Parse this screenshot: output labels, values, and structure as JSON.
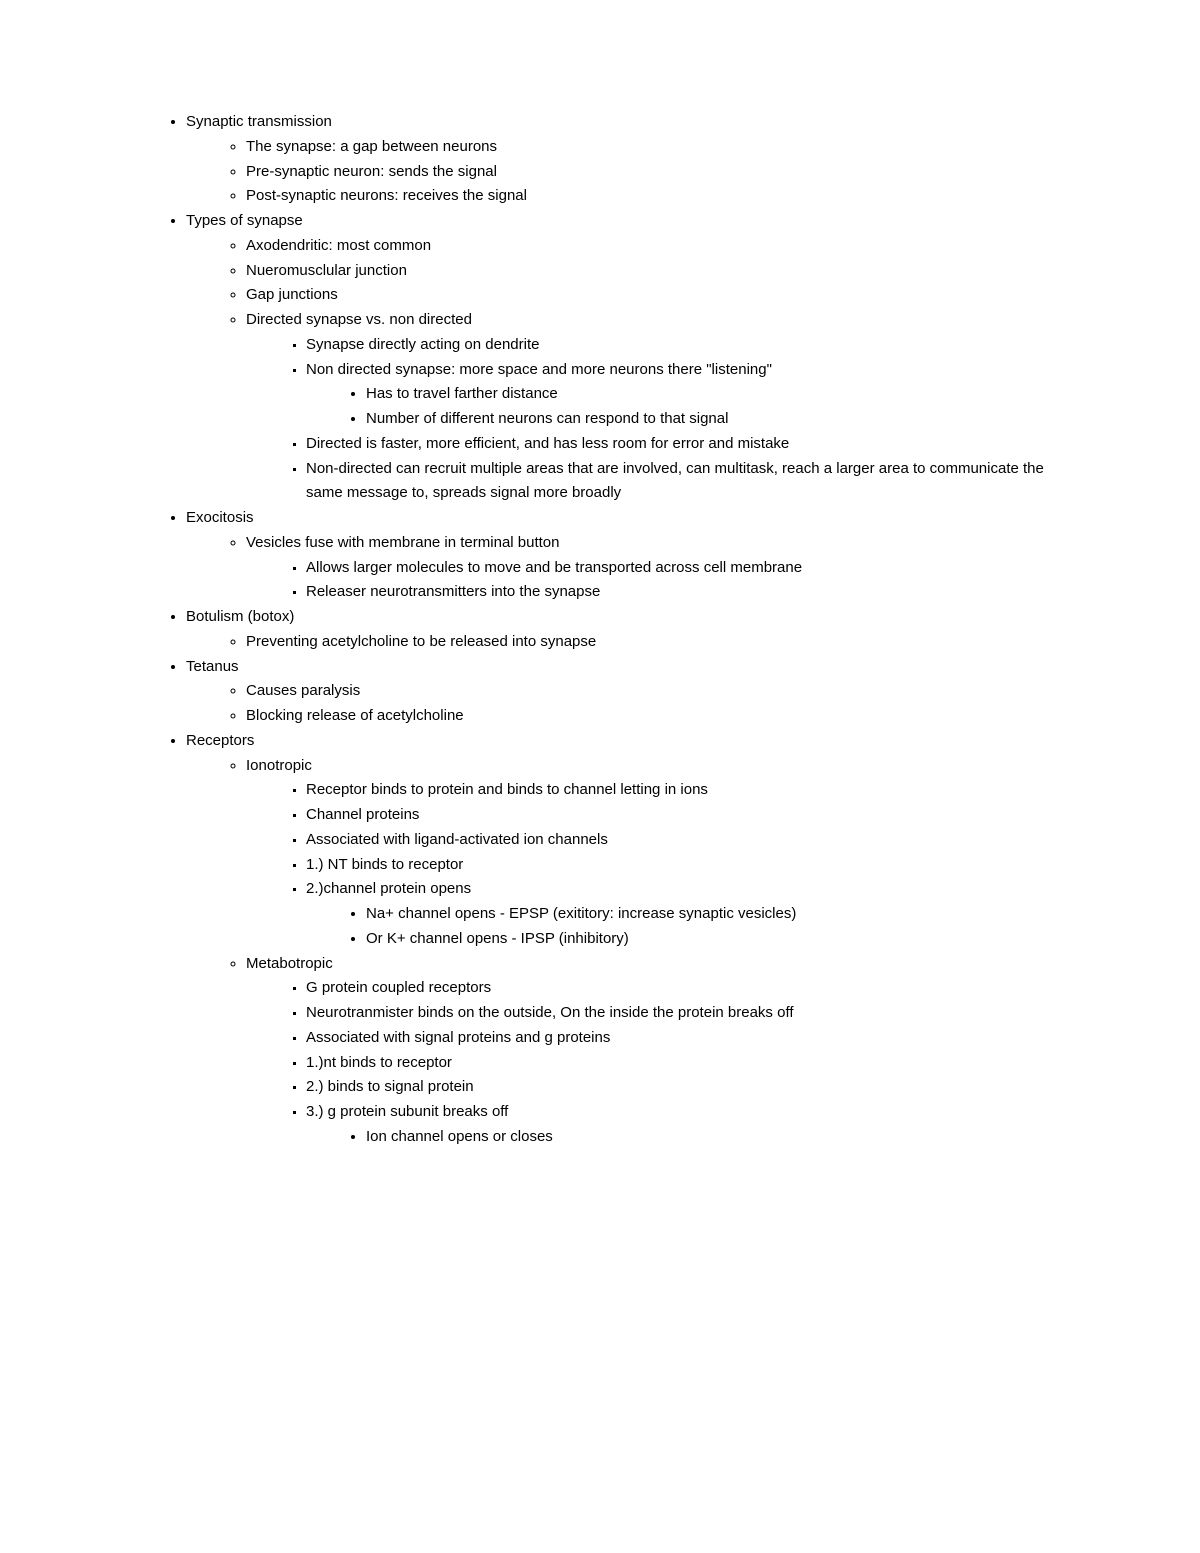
{
  "typography": {
    "font_family": "Arial",
    "font_size_pt": 11,
    "line_height": 1.65,
    "text_color": "#000000",
    "background_color": "#ffffff"
  },
  "outline": [
    {
      "level": 1,
      "text": "Synaptic transmission"
    },
    {
      "level": 2,
      "text": "The synapse: a gap between neurons"
    },
    {
      "level": 2,
      "text": "Pre-synaptic neuron: sends the signal"
    },
    {
      "level": 2,
      "text": "Post-synaptic neurons: receives the signal"
    },
    {
      "level": 1,
      "text": "Types of synapse"
    },
    {
      "level": 2,
      "text": "Axodendritic: most common"
    },
    {
      "level": 2,
      "text": "Nueromusclular junction"
    },
    {
      "level": 2,
      "text": "Gap junctions"
    },
    {
      "level": 2,
      "text": "Directed synapse vs. non directed"
    },
    {
      "level": 3,
      "text": "Synapse directly acting on dendrite"
    },
    {
      "level": 3,
      "text": "Non directed synapse: more space and more neurons there \"listening\""
    },
    {
      "level": 4,
      "text": "Has to travel farther distance"
    },
    {
      "level": 4,
      "text": "Number of different neurons can respond to that signal"
    },
    {
      "level": 3,
      "text": "Directed is faster, more efficient, and has less room for error and mistake"
    },
    {
      "level": 3,
      "text": "Non-directed can recruit multiple areas that are involved, can multitask, reach a larger area to communicate the same message to, spreads signal more broadly"
    },
    {
      "level": 1,
      "text": "Exocitosis"
    },
    {
      "level": 2,
      "text": "Vesicles fuse with membrane in terminal button"
    },
    {
      "level": 3,
      "text": "Allows larger molecules to move and be transported across cell membrane"
    },
    {
      "level": 3,
      "text": "Releaser neurotransmitters into the synapse"
    },
    {
      "level": 1,
      "text": "Botulism (botox)"
    },
    {
      "level": 2,
      "text": "Preventing acetylcholine to be released into synapse"
    },
    {
      "level": 1,
      "text": "Tetanus"
    },
    {
      "level": 2,
      "text": "Causes paralysis"
    },
    {
      "level": 2,
      "text": "Blocking release of acetylcholine"
    },
    {
      "level": 1,
      "text": "Receptors"
    },
    {
      "level": 2,
      "text": "Ionotropic"
    },
    {
      "level": 3,
      "text": "Receptor binds to protein and binds to channel letting in ions"
    },
    {
      "level": 3,
      "text": "Channel proteins"
    },
    {
      "level": 3,
      "text": "Associated with ligand-activated ion channels"
    },
    {
      "level": 3,
      "text": "1.) NT binds to receptor"
    },
    {
      "level": 3,
      "text": "2.)channel protein opens"
    },
    {
      "level": 4,
      "text": "Na+ channel opens - EPSP (exititory: increase synaptic vesicles)"
    },
    {
      "level": 4,
      "text": "Or K+ channel opens - IPSP (inhibitory)"
    },
    {
      "level": 2,
      "text": "Metabotropic"
    },
    {
      "level": 3,
      "text": "G protein coupled receptors"
    },
    {
      "level": 3,
      "text": "Neurotranmister binds on the outside, On the inside the protein breaks off"
    },
    {
      "level": 3,
      "text": "Associated with signal proteins and g proteins"
    },
    {
      "level": 3,
      "text": "1.)nt binds to receptor"
    },
    {
      "level": 3,
      "text": "2.) binds to signal protein"
    },
    {
      "level": 3,
      "text": "3.) g protein subunit breaks off"
    },
    {
      "level": 4,
      "text": "Ion channel opens or closes"
    }
  ]
}
